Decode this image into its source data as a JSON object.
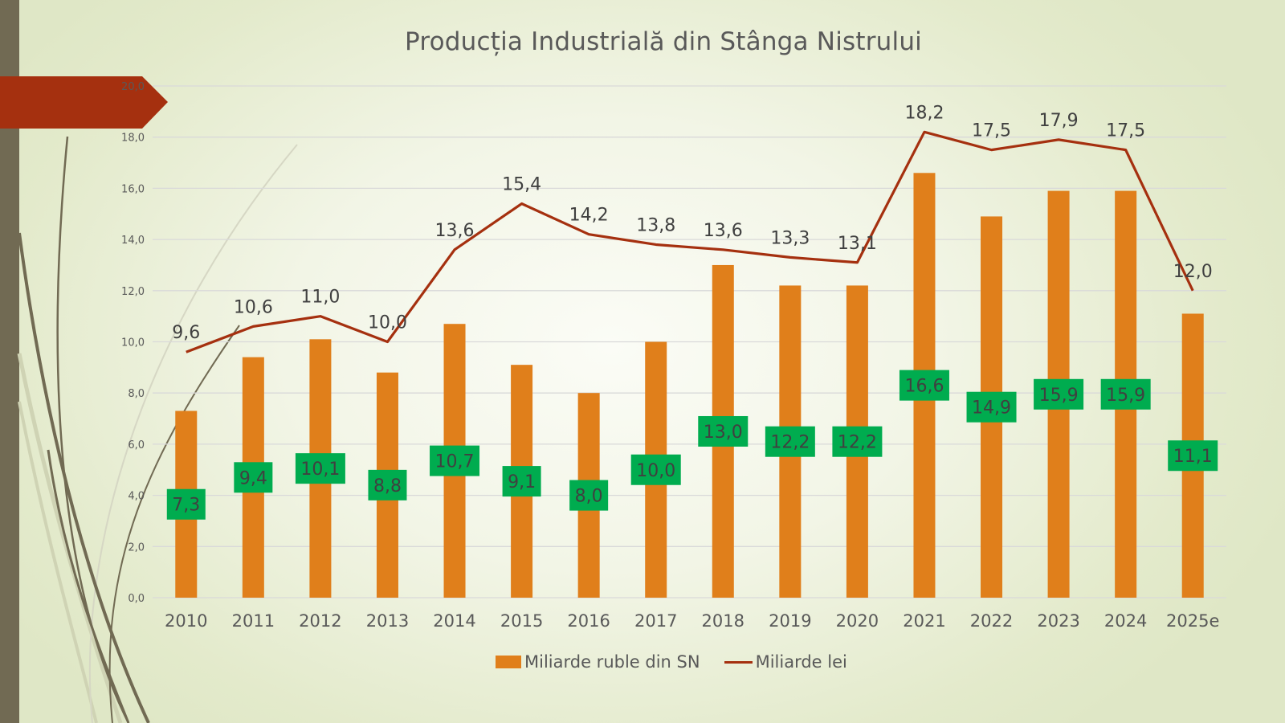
{
  "chart_data": {
    "type": "bar+line",
    "title": "Producția Industrială din Stânga Nistrului",
    "categories": [
      "2010",
      "2011",
      "2012",
      "2013",
      "2014",
      "2015",
      "2016",
      "2017",
      "2018",
      "2019",
      "2020",
      "2021",
      "2022",
      "2023",
      "2024",
      "2025e"
    ],
    "series": [
      {
        "name": "Miliarde ruble din SN",
        "type": "bar",
        "color": "#e07f1b",
        "values": [
          7.3,
          9.4,
          10.1,
          8.8,
          10.7,
          9.1,
          8.0,
          10.0,
          13.0,
          12.2,
          12.2,
          16.6,
          14.9,
          15.9,
          15.9,
          11.1
        ],
        "labels": [
          "7,3",
          "9,4",
          "10,1",
          "8,8",
          "10,7",
          "9,1",
          "8,0",
          "10,0",
          "13,0",
          "12,2",
          "12,2",
          "16,6",
          "14,9",
          "15,9",
          "15,9",
          "11,1"
        ],
        "label_bg": "#00ac4f"
      },
      {
        "name": "Miliarde lei",
        "type": "line",
        "color": "#a5300f",
        "values": [
          9.6,
          10.6,
          11.0,
          10.0,
          13.6,
          15.4,
          14.2,
          13.8,
          13.6,
          13.3,
          13.1,
          18.2,
          17.5,
          17.9,
          17.5,
          12.0
        ],
        "labels": [
          "9,6",
          "10,6",
          "11,0",
          "10,0",
          "13,6",
          "15,4",
          "14,2",
          "13,8",
          "13,6",
          "13,3",
          "13,1",
          "18,2",
          "17,5",
          "17,9",
          "17,5",
          "12,0"
        ]
      }
    ],
    "yaxis": {
      "min": 0,
      "max": 20,
      "step": 2,
      "tick_labels": [
        "0,0",
        "2,0",
        "4,0",
        "6,0",
        "8,0",
        "10,0",
        "12,0",
        "14,0",
        "16,0",
        "18,0",
        "20,0"
      ]
    },
    "grid": true,
    "legend": "bottom"
  },
  "accent_colors": {
    "side_bar": "#716a53",
    "arrow": "#a5300f"
  }
}
